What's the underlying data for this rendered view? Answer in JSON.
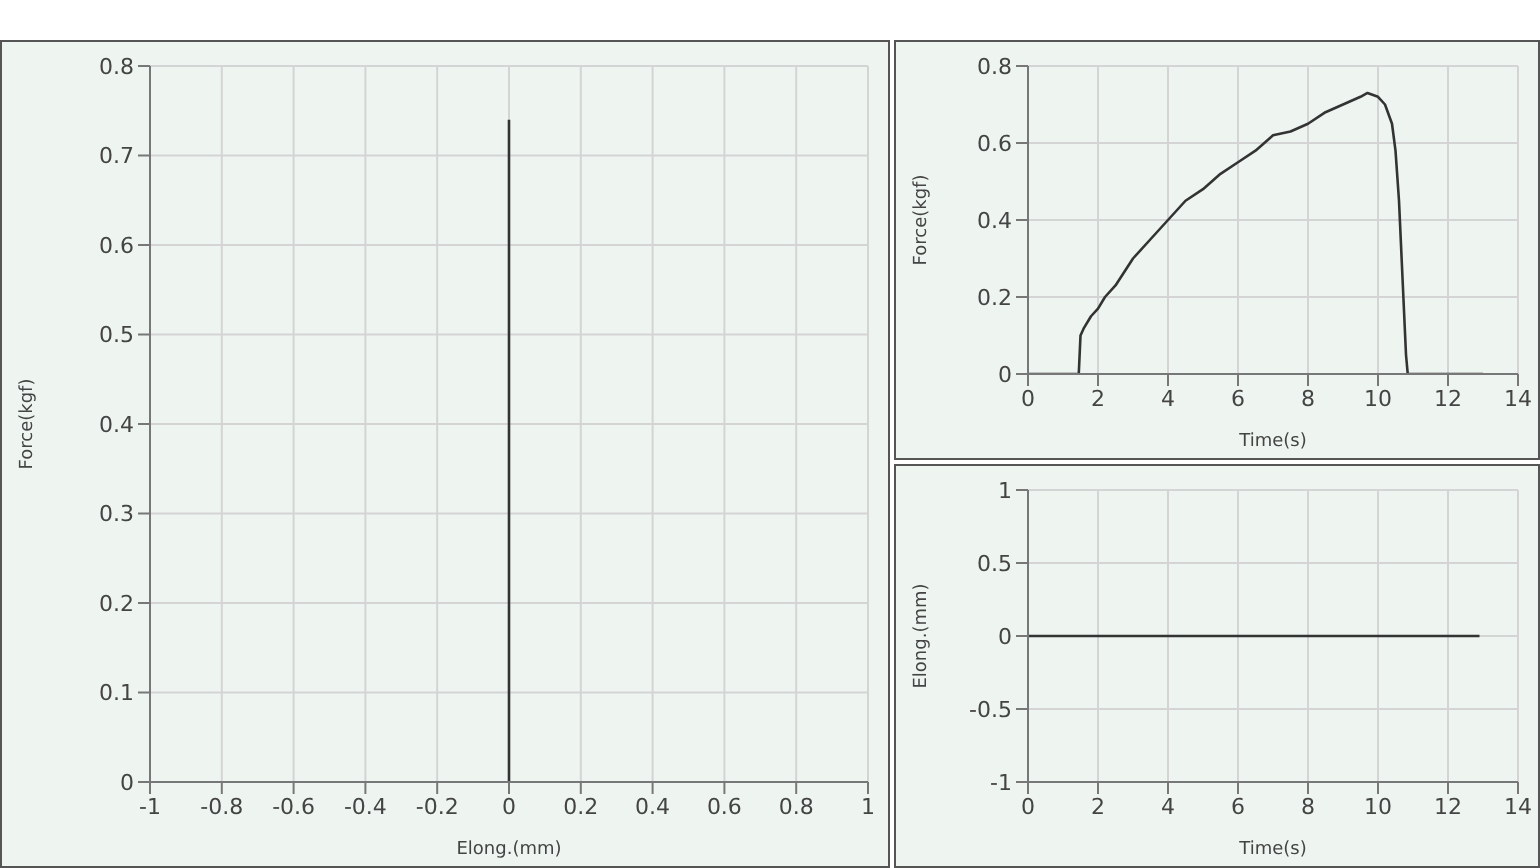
{
  "chart_data": [
    {
      "type": "line",
      "xlabel": "Elong.(mm)",
      "ylabel": "Force(kgf)",
      "xlim": [
        -1,
        1
      ],
      "xticks": [
        -1,
        -0.8,
        -0.6,
        -0.4,
        -0.2,
        0,
        0.2,
        0.4,
        0.6,
        0.8,
        1
      ],
      "ylim": [
        0,
        0.8
      ],
      "yticks": [
        0,
        0.1,
        0.2,
        0.3,
        0.4,
        0.5,
        0.6,
        0.7,
        0.8
      ],
      "grid": true,
      "legend": false,
      "marker": "none",
      "line_style": "solid",
      "series": [
        {
          "color": "#333333",
          "x": [
            0,
            0
          ],
          "values": [
            0,
            0.74
          ]
        }
      ]
    },
    {
      "type": "line",
      "xlabel": "Time(s)",
      "ylabel": "Force(kgf)",
      "xlim": [
        0,
        14
      ],
      "xticks": [
        0,
        2,
        4,
        6,
        8,
        10,
        12,
        14
      ],
      "ylim": [
        0,
        0.8
      ],
      "yticks": [
        0,
        0.2,
        0.4,
        0.6,
        0.8
      ],
      "grid": true,
      "legend": false,
      "marker": "none",
      "line_style": "solid",
      "series": [
        {
          "color": "#333333",
          "x": [
            0,
            1.45,
            1.5,
            1.6,
            1.8,
            2,
            2.2,
            2.5,
            3,
            3.5,
            4,
            4.5,
            5,
            5.5,
            6,
            6.5,
            7,
            7.5,
            8,
            8.5,
            9,
            9.5,
            9.7,
            10,
            10.2,
            10.4,
            10.5,
            10.6,
            10.7,
            10.8,
            10.85,
            13
          ],
          "values": [
            0,
            0,
            0.1,
            0.12,
            0.15,
            0.17,
            0.2,
            0.23,
            0.3,
            0.35,
            0.4,
            0.45,
            0.48,
            0.52,
            0.55,
            0.58,
            0.62,
            0.63,
            0.65,
            0.68,
            0.7,
            0.72,
            0.73,
            0.72,
            0.7,
            0.65,
            0.58,
            0.45,
            0.25,
            0.05,
            0,
            0
          ]
        }
      ]
    },
    {
      "type": "line",
      "xlabel": "Time(s)",
      "ylabel": "Elong.(mm)",
      "xlim": [
        0,
        14
      ],
      "xticks": [
        0,
        2,
        4,
        6,
        8,
        10,
        12,
        14
      ],
      "ylim": [
        -1,
        1
      ],
      "yticks": [
        -1,
        -0.5,
        0,
        0.5,
        1
      ],
      "grid": true,
      "legend": false,
      "marker": "none",
      "line_style": "solid",
      "series": [
        {
          "color": "#333333",
          "x": [
            0,
            12.9
          ],
          "values": [
            0,
            0
          ]
        }
      ]
    }
  ]
}
